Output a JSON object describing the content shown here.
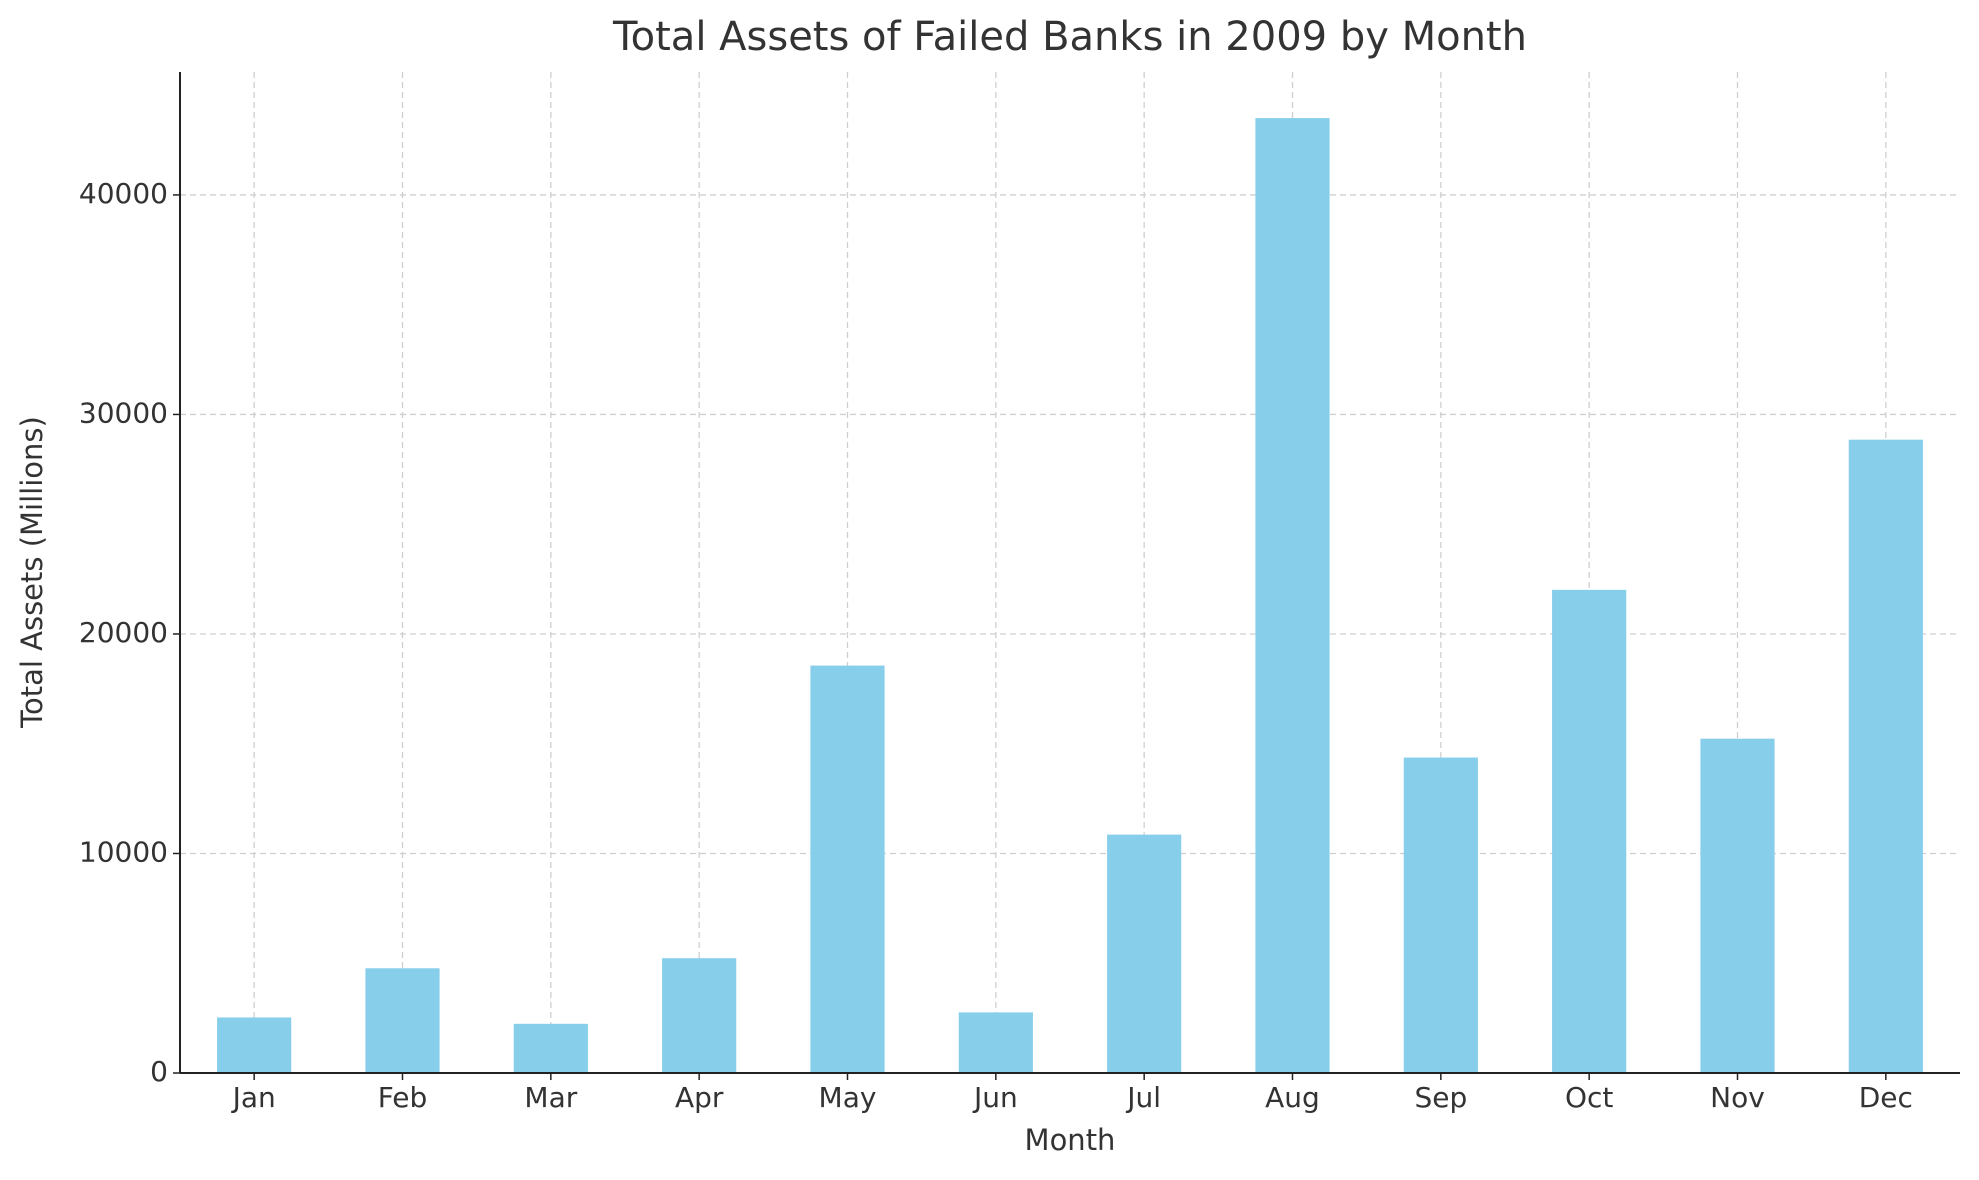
{
  "chart_data": {
    "type": "bar",
    "title": "Total Assets of Failed Banks in 2009 by Month",
    "x_label": "Month",
    "y_label": "Total Assets (Millions)",
    "categories": [
      "Jan",
      "Feb",
      "Mar",
      "Apr",
      "May",
      "Jun",
      "Jul",
      "Aug",
      "Sep",
      "Oct",
      "Nov",
      "Dec"
    ],
    "values": [
      2530,
      4770,
      2240,
      5230,
      18560,
      2760,
      10860,
      43500,
      14370,
      22010,
      15230,
      28850
    ],
    "color": "#87ceeb",
    "ylim": [
      0,
      45600
    ],
    "yticks": [
      0,
      10000,
      20000,
      30000,
      40000
    ],
    "grid": true
  }
}
